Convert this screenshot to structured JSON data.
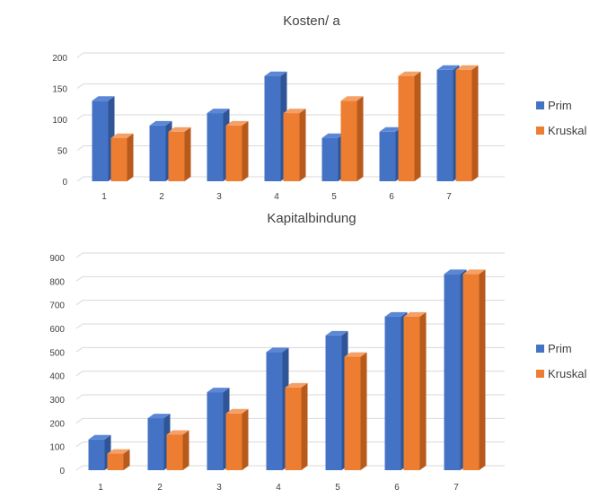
{
  "chart_data": [
    {
      "type": "bar",
      "title": "Kosten/ a",
      "categories": [
        "1",
        "2",
        "3",
        "4",
        "5",
        "6",
        "7"
      ],
      "series": [
        {
          "name": "Prim",
          "values": [
            130,
            90,
            110,
            170,
            70,
            80,
            180
          ]
        },
        {
          "name": "Kruskal",
          "values": [
            70,
            80,
            90,
            110,
            130,
            170,
            180
          ]
        }
      ],
      "yticks": [
        "0",
        "50",
        "100",
        "150",
        "200"
      ],
      "ylim": [
        0,
        200
      ],
      "grid": true,
      "legend": "right",
      "style": "3d-clustered-column"
    },
    {
      "type": "bar",
      "title": "Kapitalbindung",
      "categories": [
        "1",
        "2",
        "3",
        "4",
        "5",
        "6",
        "7"
      ],
      "series": [
        {
          "name": "Prim",
          "values": [
            130,
            220,
            330,
            500,
            570,
            650,
            830
          ]
        },
        {
          "name": "Kruskal",
          "values": [
            70,
            150,
            240,
            350,
            480,
            650,
            830
          ]
        }
      ],
      "yticks": [
        "0",
        "100",
        "200",
        "300",
        "400",
        "500",
        "600",
        "700",
        "800",
        "900"
      ],
      "ylim": [
        0,
        900
      ],
      "grid": true,
      "legend": "right",
      "style": "3d-clustered-column"
    }
  ],
  "colors": {
    "Prim": {
      "front": "#4472C4",
      "top": "#5B87D6",
      "side": "#2F5597"
    },
    "Kruskal": {
      "front": "#ED7D31",
      "top": "#F4A066",
      "side": "#B85A1C"
    },
    "grid": "#D9D9D9",
    "text": "#404040"
  }
}
